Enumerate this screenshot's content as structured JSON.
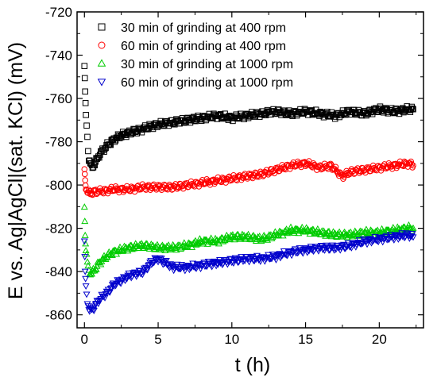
{
  "chart_data": {
    "type": "scatter",
    "title": "",
    "xlabel": "t (h)",
    "ylabel": "E vs. Ag|AgCl|(sat. KCl) (mV)",
    "xlim": [
      -0.5,
      23
    ],
    "ylim": [
      -866,
      -720
    ],
    "xticks": [
      0,
      5,
      10,
      15,
      20
    ],
    "yticks": [
      -720,
      -740,
      -760,
      -780,
      -800,
      -820,
      -840,
      -860
    ],
    "grid": false,
    "legend_position": "top-left",
    "series": [
      {
        "name": "30 min of grinding at 400 rpm",
        "marker": "square",
        "color": "#000000",
        "x": [
          0,
          0.05,
          0.1,
          0.2,
          0.3,
          0.5,
          0.8,
          1.0,
          1.5,
          2.0,
          2.5,
          3.0,
          3.5,
          4.0,
          5.0,
          6.0,
          7.0,
          8.0,
          9.0,
          10.0,
          11.0,
          12.0,
          13.0,
          14.0,
          15.0,
          16.0,
          17.0,
          18.0,
          19.0,
          20.0,
          21.0,
          22.0,
          22.3
        ],
        "y": [
          -745,
          -758,
          -768,
          -778,
          -788,
          -792,
          -789,
          -786,
          -782,
          -779,
          -777,
          -776,
          -775,
          -774,
          -772,
          -771,
          -770,
          -769,
          -768,
          -769,
          -768,
          -767,
          -766,
          -767,
          -766,
          -767,
          -768,
          -766,
          -767,
          -765,
          -766,
          -765,
          -765
        ]
      },
      {
        "name": "60 min of grinding at 400 rpm",
        "marker": "circle",
        "color": "#ff0000",
        "x": [
          0,
          0.05,
          0.1,
          0.2,
          0.4,
          0.6,
          1.0,
          2.0,
          3.0,
          4.0,
          5.0,
          6.0,
          7.0,
          8.0,
          9.0,
          10.0,
          11.0,
          12.0,
          13.0,
          14.0,
          15.0,
          16.0,
          16.7,
          17.5,
          18.0,
          19.0,
          20.0,
          21.0,
          22.0,
          22.3
        ],
        "y": [
          -794,
          -798,
          -801,
          -803,
          -804,
          -803,
          -803,
          -802,
          -802,
          -801,
          -801,
          -801,
          -800,
          -799,
          -798,
          -797,
          -796,
          -795,
          -793,
          -791,
          -790,
          -792,
          -791,
          -796,
          -794,
          -793,
          -792,
          -791,
          -790,
          -791
        ]
      },
      {
        "name": "30 min of grinding at 1000 rpm",
        "marker": "triangle-up",
        "color": "#00cc00",
        "x": [
          0,
          0.05,
          0.1,
          0.2,
          0.3,
          0.5,
          0.8,
          1.0,
          1.5,
          2.0,
          3.0,
          4.0,
          5.0,
          6.0,
          7.0,
          8.0,
          9.0,
          10.0,
          11.0,
          12.0,
          13.0,
          14.0,
          15.0,
          16.0,
          17.0,
          18.0,
          19.0,
          20.0,
          21.0,
          22.0,
          22.3
        ],
        "y": [
          -810,
          -822,
          -830,
          -836,
          -840,
          -841,
          -838,
          -836,
          -833,
          -831,
          -829,
          -828,
          -829,
          -829,
          -828,
          -826,
          -826,
          -824,
          -824,
          -825,
          -823,
          -821,
          -821,
          -822,
          -823,
          -823,
          -822,
          -822,
          -821,
          -820,
          -820
        ]
      },
      {
        "name": "60 min of grinding at 1000 rpm",
        "marker": "triangle-down",
        "color": "#0000cc",
        "x": [
          0,
          0.05,
          0.1,
          0.2,
          0.3,
          0.4,
          0.6,
          0.8,
          1.0,
          1.5,
          2.0,
          3.0,
          4.0,
          4.5,
          5.0,
          5.5,
          6.0,
          7.0,
          8.0,
          9.0,
          10.0,
          11.0,
          12.0,
          13.0,
          14.0,
          15.0,
          16.0,
          17.0,
          18.0,
          19.0,
          20.0,
          21.0,
          22.0,
          22.3
        ],
        "y": [
          -826,
          -840,
          -848,
          -854,
          -857,
          -858,
          -857,
          -855,
          -853,
          -850,
          -846,
          -842,
          -840,
          -836,
          -834,
          -836,
          -838,
          -838,
          -837,
          -836,
          -835,
          -834,
          -834,
          -833,
          -831,
          -830,
          -829,
          -829,
          -828,
          -826,
          -825,
          -824,
          -823,
          -824
        ]
      }
    ]
  }
}
